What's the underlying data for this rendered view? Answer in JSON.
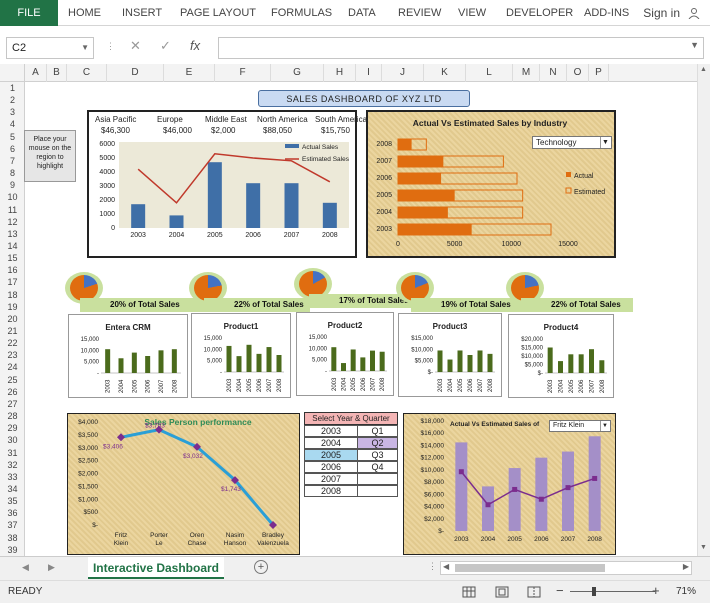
{
  "ribbon": {
    "file": "FILE",
    "tabs": [
      "HOME",
      "INSERT",
      "PAGE LAYOUT",
      "FORMULAS",
      "DATA",
      "REVIEW",
      "VIEW",
      "DEVELOPER",
      "ADD-INS"
    ],
    "signin": "Sign in"
  },
  "formula_bar": {
    "name_box": "C2",
    "fx": "fx",
    "value": ""
  },
  "columns": [
    "A",
    "B",
    "C",
    "D",
    "E",
    "F",
    "G",
    "H",
    "I",
    "J",
    "K",
    "L",
    "M",
    "N",
    "O",
    "P"
  ],
  "rows": [
    "1",
    "2",
    "3",
    "4",
    "5",
    "6",
    "7",
    "8",
    "9",
    "10",
    "11",
    "12",
    "13",
    "14",
    "15",
    "16",
    "17",
    "18",
    "19",
    "20",
    "21",
    "22",
    "23",
    "24",
    "25",
    "26",
    "27",
    "28",
    "29",
    "30",
    "31",
    "32",
    "33",
    "34",
    "35",
    "36",
    "37",
    "38",
    "39"
  ],
  "dashboard_title": "SALES DASHBOARD OF XYZ LTD",
  "callout": "Place your mouse on the region to highlight",
  "regions": {
    "names": [
      "Asia Pacific",
      "Europe",
      "Middle East",
      "North America",
      "South America"
    ],
    "values": [
      "$46,300",
      "$46,000",
      "$2,000",
      "$88,050",
      "$15,750"
    ]
  },
  "chart_data": [
    {
      "type": "bar",
      "categories": [
        "2003",
        "2004",
        "2005",
        "2006",
        "2007",
        "2008"
      ],
      "series": [
        {
          "name": "Actual Sales",
          "values": [
            1700,
            900,
            4700,
            3200,
            3200,
            1800
          ]
        },
        {
          "name": "Estimated Sales",
          "values": [
            4200,
            1800,
            5300,
            5000,
            4800,
            3300
          ]
        }
      ],
      "ylim": [
        0,
        6000
      ],
      "yticks": [
        "0",
        "1000",
        "2000",
        "3000",
        "4000",
        "5000",
        "6000"
      ],
      "legend": "top-right"
    },
    {
      "type": "bar",
      "title": "Actual Vs Estimated Sales by Industry",
      "dropdown": "Technology",
      "categories": [
        "2008",
        "2007",
        "2006",
        "2005",
        "2004",
        "2003"
      ],
      "series": [
        {
          "name": "Actual",
          "values": [
            1200,
            4000,
            3800,
            5000,
            4400,
            6500
          ]
        },
        {
          "name": "Estimated",
          "values": [
            2500,
            9300,
            10500,
            11000,
            11000,
            13500
          ]
        }
      ],
      "xticks": [
        "0",
        "5000",
        "10000",
        "15000"
      ],
      "xlim": [
        0,
        15000
      ]
    },
    {
      "type": "bar",
      "title": "Entera CRM",
      "share": "20% of Total Sales",
      "categories": [
        "2003",
        "2004",
        "2005",
        "2006",
        "2007",
        "2008"
      ],
      "values": [
        10500,
        6500,
        9000,
        7500,
        10000,
        10500
      ],
      "yticks": [
        "-",
        "5,000",
        "10,000",
        "15,000"
      ],
      "ylim": [
        0,
        15000
      ]
    },
    {
      "type": "bar",
      "title": "Product1",
      "share": "22% of Total Sales",
      "categories": [
        "2003",
        "2004",
        "2005",
        "2006",
        "2007",
        "2008"
      ],
      "values": [
        11500,
        7000,
        12000,
        8000,
        11000,
        7500
      ],
      "yticks": [
        "-",
        "5,000",
        "10,000",
        "15,000"
      ],
      "ylim": [
        0,
        15000
      ]
    },
    {
      "type": "bar",
      "title": "Product2",
      "share": "17% of Total Sales",
      "categories": [
        "2003",
        "2004",
        "2005",
        "2006",
        "2007",
        "2008"
      ],
      "values": [
        10500,
        3500,
        9500,
        6000,
        9000,
        8500
      ],
      "yticks": [
        "-",
        "5,000",
        "10,000",
        "15,000"
      ],
      "ylim": [
        0,
        15000
      ]
    },
    {
      "type": "bar",
      "title": "Product3",
      "share": "19% of Total Sales",
      "categories": [
        "2003",
        "2004",
        "2005",
        "2006",
        "2007",
        "2008"
      ],
      "values": [
        9500,
        5500,
        9500,
        7500,
        9500,
        8000
      ],
      "yticks": [
        "$-",
        "$5,000",
        "$10,000",
        "$15,000"
      ],
      "ylim": [
        0,
        15000
      ]
    },
    {
      "type": "bar",
      "title": "Product4",
      "share": "22% of Total Sales",
      "categories": [
        "2003",
        "2004",
        "2005",
        "2006",
        "2007",
        "2008"
      ],
      "values": [
        15000,
        7000,
        11000,
        11000,
        14000,
        7500
      ],
      "yticks": [
        "$-",
        "$5,000",
        "$10,000",
        "$15,000",
        "$20,000"
      ],
      "ylim": [
        0,
        20000
      ]
    },
    {
      "type": "line",
      "title": "Sales Person performance",
      "categories": [
        "Fritz Klein",
        "Porter Le",
        "Oren Chase",
        "Nasim Hanson",
        "Bradley Valenzuela"
      ],
      "values": [
        3406,
        3703,
        3032,
        1743,
        0
      ],
      "labels": [
        "$3,406",
        "$3,703",
        "$3,032",
        "$1,743",
        ""
      ],
      "yticks": [
        "$-",
        "$500",
        "$1,000",
        "$1,500",
        "$2,000",
        "$2,500",
        "$3,000",
        "$3,500",
        "$4,000"
      ],
      "ylim": [
        0,
        4000
      ]
    },
    {
      "type": "bar",
      "title": "Actual Vs Estimated Sales of",
      "dropdown": "Fritz Klein",
      "categories": [
        "2003",
        "2004",
        "2005",
        "2006",
        "2007",
        "2008"
      ],
      "series": [
        {
          "name": "Estimated",
          "values": [
            14500,
            7300,
            10300,
            12000,
            13000,
            15500
          ]
        },
        {
          "name": "Actual",
          "values": [
            9700,
            4300,
            6800,
            5200,
            7100,
            8600
          ]
        }
      ],
      "yticks": [
        "$-",
        "$2,000",
        "$4,000",
        "$6,000",
        "$8,000",
        "$10,000",
        "$12,000",
        "$14,000",
        "$16,000",
        "$18,000"
      ],
      "ylim": [
        0,
        18000
      ]
    }
  ],
  "selector": {
    "header": "Select Year & Quarter",
    "years": [
      "2003",
      "2004",
      "2005",
      "2006",
      "2007",
      "2008"
    ],
    "quarters": [
      "Q1",
      "Q2",
      "Q3",
      "Q4"
    ],
    "selected_year": "2005",
    "selected_quarter": "Q2"
  },
  "sheet_tab": "Interactive Dashboard",
  "status": {
    "ready": "READY",
    "zoom": "71%"
  },
  "colors": {
    "accent": "#217346",
    "blue_bar": "#4472a8",
    "orange": "#e06d10",
    "green_bar": "#4b6b1c",
    "purple_bar": "#a48fc8"
  }
}
